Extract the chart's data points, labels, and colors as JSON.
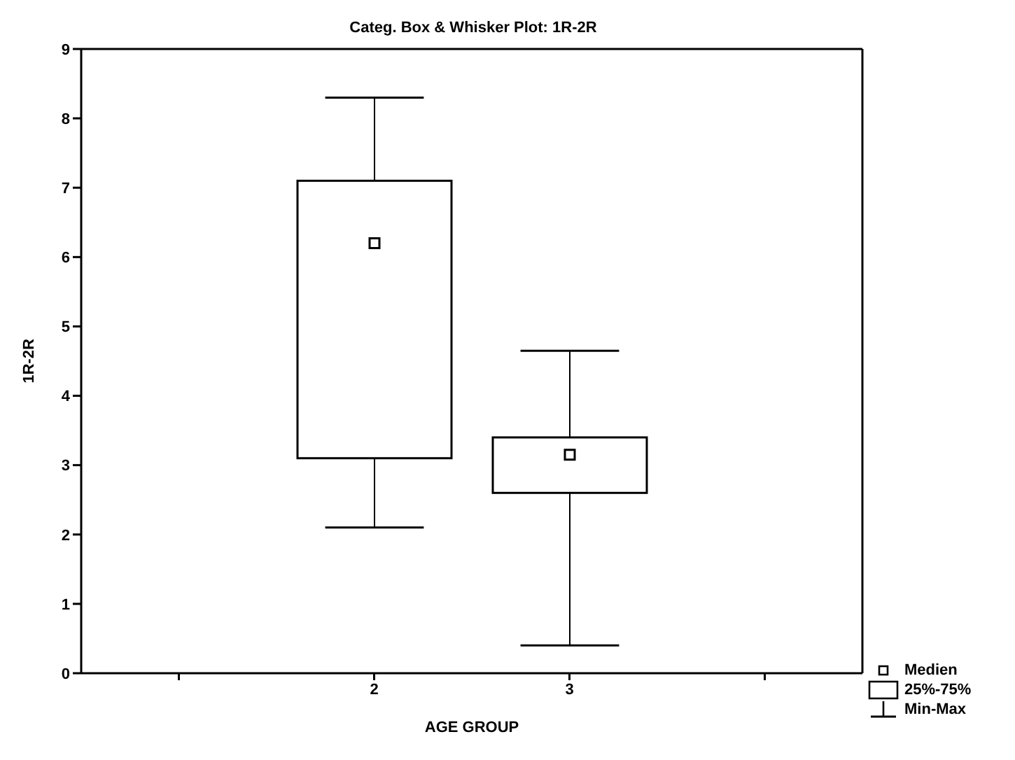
{
  "chart_data": {
    "type": "box",
    "title": "Categ. Box & Whisker Plot: 1R-2R",
    "xlabel": "AGE GROUP",
    "ylabel": "1R-2R",
    "categories": [
      null,
      "2",
      "3",
      null
    ],
    "boxes": [
      null,
      {
        "low": 2.1,
        "q1": 3.1,
        "median": 6.2,
        "q3": 7.1,
        "high": 8.3
      },
      {
        "low": 0.4,
        "q1": 2.6,
        "median": 3.15,
        "q3": 3.4,
        "high": 4.65
      },
      null
    ],
    "color": "#000000",
    "marker": "square",
    "ylim": [
      0,
      9
    ],
    "yticks": [
      0,
      1,
      2,
      3,
      4,
      5,
      6,
      7,
      8,
      9
    ],
    "annotations": [
      "Medien",
      "25%-75%",
      "Min-Max"
    ]
  }
}
